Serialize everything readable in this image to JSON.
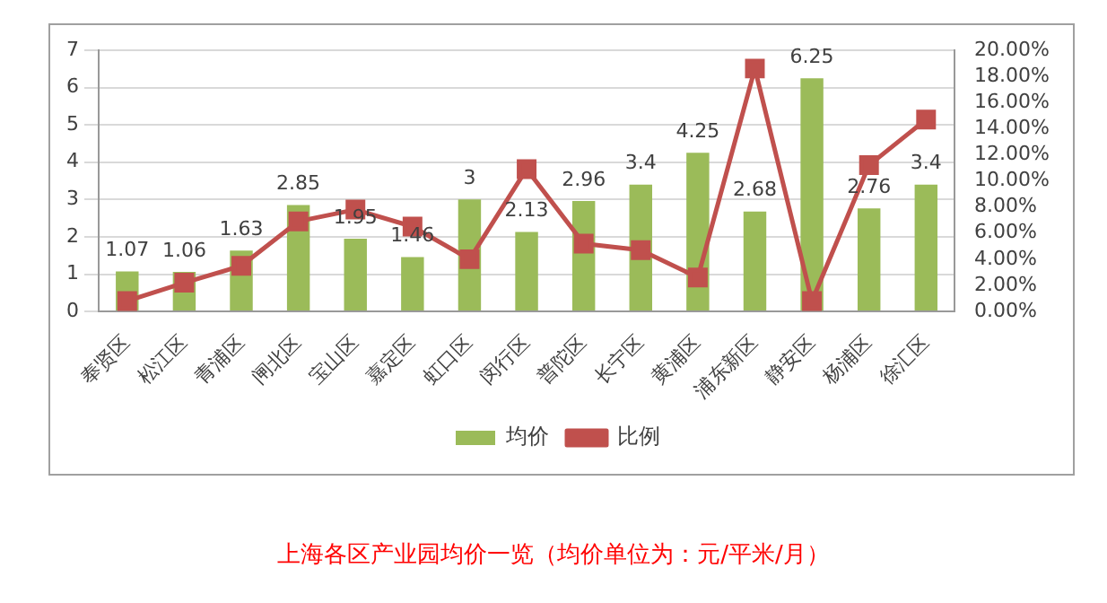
{
  "chart_data": {
    "type": "bar",
    "title": "上海各区产业园均价一览（均价单位为：元/平米/月）",
    "categories": [
      "奉贤区",
      "松江区",
      "青浦区",
      "闸北区",
      "宝山区",
      "嘉定区",
      "虹口区",
      "闵行区",
      "普陀区",
      "长宁区",
      "黄浦区",
      "浦东新区",
      "静安区",
      "杨浦区",
      "徐汇区"
    ],
    "series": [
      {
        "name": "均价",
        "color": "#9bbb59",
        "values": [
          1.07,
          1.06,
          1.63,
          2.85,
          1.95,
          1.46,
          3,
          2.13,
          2.96,
          3.4,
          4.25,
          2.68,
          6.25,
          2.76,
          3.4
        ],
        "value_labels": [
          "1.07",
          "1.06",
          "1.63",
          "2.85",
          "1.95",
          "1.46",
          "3",
          "2.13",
          "2.96",
          "3.4",
          "4.25",
          "2.68",
          "6.25",
          "2.76",
          "3.4"
        ]
      },
      {
        "name": "比例",
        "type": "line",
        "axis": "y2",
        "color": "#c0504d",
        "marker": "square",
        "values": [
          0.8,
          2.2,
          3.5,
          6.9,
          7.8,
          6.5,
          4.0,
          10.9,
          5.2,
          4.7,
          2.6,
          18.6,
          0.8,
          11.2,
          14.7
        ]
      }
    ],
    "ylim": [
      0,
      7
    ],
    "yticks": [
      0,
      1,
      2,
      3,
      4,
      5,
      6,
      7
    ],
    "y2lim": [
      0,
      20
    ],
    "y2ticks": [
      {
        "value": 0,
        "label": "0.00%"
      },
      {
        "value": 2,
        "label": "2.00%"
      },
      {
        "value": 4,
        "label": "4.00%"
      },
      {
        "value": 6,
        "label": "6.00%"
      },
      {
        "value": 8,
        "label": "8.00%"
      },
      {
        "value": 10,
        "label": "10.00%"
      },
      {
        "value": 12,
        "label": "12.00%"
      },
      {
        "value": 14,
        "label": "14.00%"
      },
      {
        "value": 16,
        "label": "16.00%"
      },
      {
        "value": 18,
        "label": "18.00%"
      },
      {
        "value": 20,
        "label": "20.00%"
      }
    ],
    "grid": "y",
    "legend": "bottom"
  }
}
